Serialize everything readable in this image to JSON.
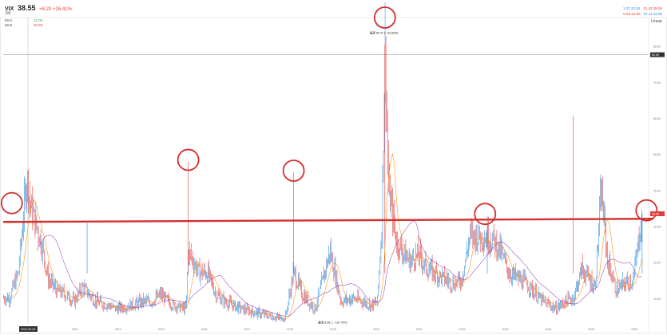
{
  "header": {
    "symbol": "VIX",
    "price": "38.55",
    "change": "+8.23 +26.41%",
    "timeframe": "1W"
  },
  "ma_rows": [
    {
      "label": "MA1",
      "value": "22.05",
      "color": "#43a047"
    },
    {
      "label": "MA2",
      "value": "30.65",
      "color": "#e53935"
    }
  ],
  "legend_right": {
    "row1": [
      "1.37 22.63",
      "21.43 38.55"
    ],
    "row2": [
      "0.93 22.90",
      "37.11 22.96"
    ]
  },
  "scale_label": "Linear",
  "crosshair_date_label": "2022-09-30",
  "colors": {
    "up": "#1e88e5",
    "down": "#e53935",
    "ma_fast": "#fb8c00",
    "ma_slow": "#8e24aa",
    "annotation": "#d32f2f",
    "price_tag": "#e53935"
  },
  "annotations": {
    "high_label": "最高 85.47 (↑ 94.89%)",
    "low_label": "最低 8.56 (↓ -115.79%)",
    "price_tag": "38.55"
  },
  "chart_data": {
    "type": "line",
    "title": "",
    "xlabel": "",
    "ylabel": "",
    "x_ticks": [
      "2012",
      "2013",
      "2014",
      "2015",
      "2016",
      "2017",
      "2018",
      "2019",
      "2020",
      "2021",
      "2022",
      "2023",
      "2024",
      "2025",
      "2026"
    ],
    "y_ticks": [
      "85.00",
      "75.00",
      "65.00",
      "55.00",
      "45.00",
      "35.00",
      "25.00",
      "15.00"
    ],
    "ylim": [
      8,
      93
    ],
    "crosshair_y": 82.69,
    "crosshair_y_label": "82.69",
    "support_level": 36.5,
    "series": [
      {
        "name": "",
        "x": [
          2011.5,
          2011.7,
          2011.9,
          2012.0,
          2012.2,
          2012.4,
          2012.6,
          2012.8,
          2013.0,
          2013.2,
          2013.5,
          2013.8,
          2014.0,
          2014.3,
          2014.6,
          2014.8,
          2015.0,
          2015.3,
          2015.6,
          2015.65,
          2015.9,
          2016.1,
          2016.3,
          2016.5,
          2016.9,
          2017.2,
          2017.6,
          2017.9,
          2018.1,
          2018.3,
          2018.6,
          2018.95,
          2019.2,
          2019.5,
          2019.9,
          2020.05,
          2020.15,
          2020.22,
          2020.3,
          2020.5,
          2020.8,
          2021.0,
          2021.2,
          2021.5,
          2021.8,
          2022.0,
          2022.2,
          2022.5,
          2022.75,
          2022.9,
          2023.1,
          2023.5,
          2023.9,
          2024.2,
          2024.4,
          2024.6,
          2024.8,
          2025.1,
          2025.25,
          2025.4,
          2025.6,
          2025.8,
          2026.0,
          2026.2
        ],
        "y": [
          15,
          22,
          48,
          40,
          32,
          20,
          17,
          16,
          14,
          18,
          14,
          13,
          12,
          13,
          14,
          14,
          16,
          13,
          12,
          28,
          22,
          22,
          16,
          14,
          12,
          11,
          10,
          9,
          22,
          16,
          12,
          28,
          14,
          15,
          13,
          14,
          35,
          85,
          45,
          30,
          25,
          27,
          23,
          21,
          19,
          20,
          32,
          32,
          31,
          28,
          22,
          19,
          14,
          12,
          14,
          15,
          23,
          18,
          45,
          25,
          17,
          19,
          20,
          38.55
        ]
      }
    ]
  }
}
